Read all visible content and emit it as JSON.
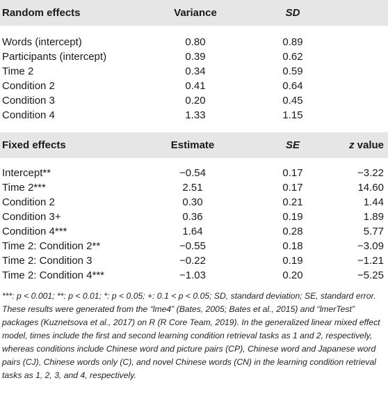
{
  "random": {
    "headers": [
      "Random effects",
      "Variance",
      "SD"
    ],
    "rows": [
      [
        "Words (intercept)",
        "0.80",
        "0.89"
      ],
      [
        "Participants (intercept)",
        "0.39",
        "0.62"
      ],
      [
        "Time 2",
        "0.34",
        "0.59"
      ],
      [
        "Condition 2",
        "0.41",
        "0.64"
      ],
      [
        "Condition 3",
        "0.20",
        "0.45"
      ],
      [
        "Condition 4",
        "1.33",
        "1.15"
      ]
    ]
  },
  "fixed": {
    "headers": [
      "Fixed effects",
      "Estimate",
      "SE",
      "z",
      " value"
    ],
    "rows": [
      [
        "Intercept**",
        "−0.54",
        "0.17",
        "−3.22"
      ],
      [
        "Time 2***",
        "2.51",
        "0.17",
        "14.60"
      ],
      [
        "Condition 2",
        "0.30",
        "0.21",
        "1.44"
      ],
      [
        "Condition 3+",
        "0.36",
        "0.19",
        "1.89"
      ],
      [
        "Condition 4***",
        "1.64",
        "0.28",
        "5.77"
      ],
      [
        "Time 2: Condition 2**",
        "−0.55",
        "0.18",
        "−3.09"
      ],
      [
        "Time 2: Condition 3",
        "−0.22",
        "0.19",
        "−1.21"
      ],
      [
        "Time 2: Condition 4***",
        "−1.03",
        "0.20",
        "−5.25"
      ]
    ]
  },
  "footnote": "***: p < 0.001; **: p < 0.01; *: p < 0.05; +: 0.1 < p < 0.05; SD, standard deviation; SE, standard error. These results were generated from the “lme4” (Bates, 2005; Bates et al., 2015) and “lmerTest” packages (Kuznetsova et al., 2017) on R (R Core Team, 2019). In the generalized linear mixed effect model, times include the first and second learning condition retrieval tasks as 1 and 2, respectively, whereas conditions include Chinese word and picture pairs (CP), Chinese word and Japanese word pairs (CJ), Chinese words only (C), and novel Chinese words (CN) in the learning condition retrieval tasks as 1, 2, 3, and 4, respectively."
}
